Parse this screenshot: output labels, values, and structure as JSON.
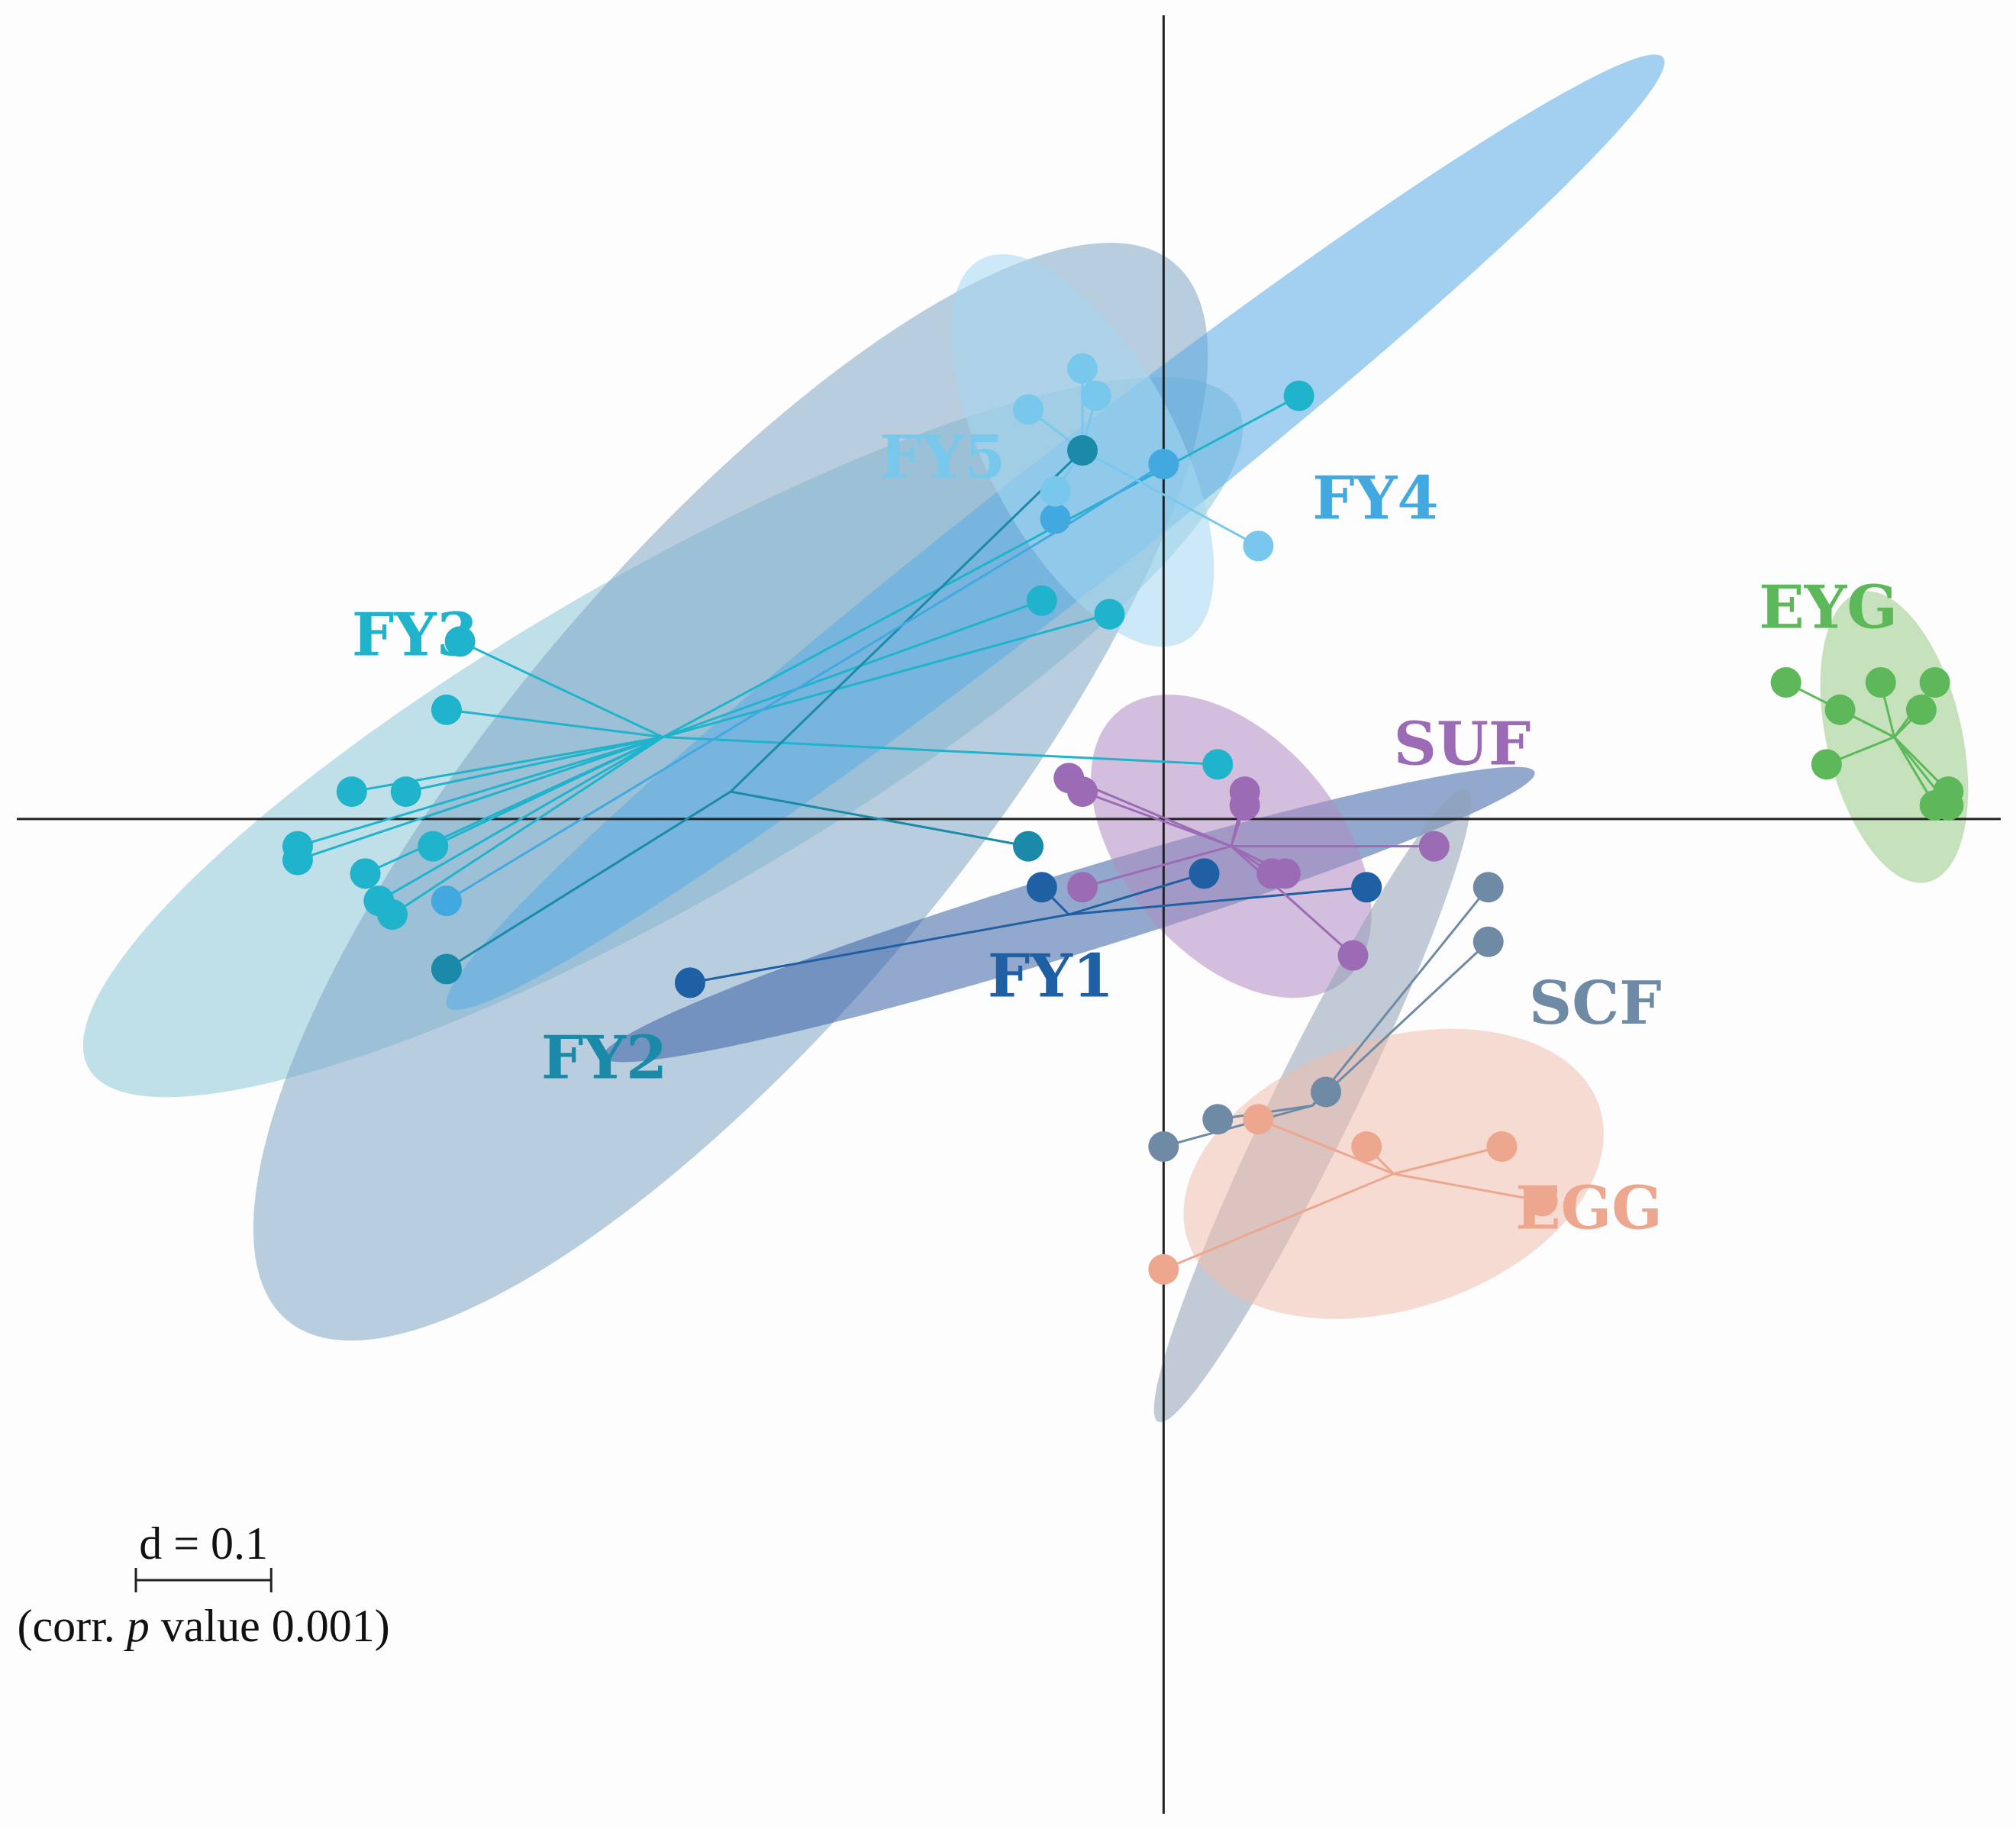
{
  "chart_data": {
    "type": "scatter",
    "subtype": "ordination (s.class) with group centroids and ellipses",
    "xlim": [
      -0.86,
      0.63
    ],
    "ylim": [
      -0.74,
      0.6
    ],
    "axes_cross_at": [
      0,
      0
    ],
    "scale_bar": {
      "distance": 0.1,
      "label": "d = 0.1",
      "caption_parts": [
        "(corr. ",
        "p",
        " value 0.001)"
      ]
    },
    "groups": [
      {
        "name": "FY3",
        "color": "#1fb3cc",
        "ellipse_color": "#8cc9d9",
        "centroid": [
          -0.37,
          0.06
        ],
        "ellipse": {
          "rx": 0.49,
          "ry": 0.12,
          "angle_deg": -30
        },
        "points": [
          [
            -0.53,
            0.08
          ],
          [
            -0.6,
            0.02
          ],
          [
            -0.56,
            0.02
          ],
          [
            -0.64,
            -0.02
          ],
          [
            -0.64,
            -0.03
          ],
          [
            -0.54,
            -0.02
          ],
          [
            -0.58,
            -0.06
          ],
          [
            -0.57,
            -0.07
          ],
          [
            0.04,
            0.04
          ],
          [
            -0.09,
            0.16
          ],
          [
            -0.04,
            0.15
          ],
          [
            -0.52,
            0.13
          ],
          [
            0.1,
            0.31
          ],
          [
            -0.59,
            -0.04
          ]
        ]
      },
      {
        "name": "FY2",
        "color": "#1a8aa8",
        "ellipse_color": "#7fa6c4",
        "centroid": [
          -0.32,
          0.02
        ],
        "ellipse": {
          "rx": 0.51,
          "ry": 0.17,
          "angle_deg": -50
        },
        "points": [
          [
            -0.1,
            -0.02
          ],
          [
            -0.53,
            -0.11
          ],
          [
            -0.06,
            0.27
          ]
        ]
      },
      {
        "name": "FY4",
        "color": "#42a9e0",
        "ellipse_color": "#59ace6",
        "centroid": [
          -0.08,
          0.21
        ],
        "ellipse": {
          "rx": 0.57,
          "ry": 0.05,
          "angle_deg": -38
        },
        "points": [
          [
            0.0,
            0.26
          ],
          [
            -0.08,
            0.22
          ],
          [
            -0.53,
            -0.06
          ]
        ]
      },
      {
        "name": "FY5",
        "color": "#77c8ec",
        "ellipse_color": "#a6d8f2",
        "centroid": [
          -0.06,
          0.27
        ],
        "ellipse": {
          "rx": 0.16,
          "ry": 0.07,
          "angle_deg": 62
        },
        "points": [
          [
            -0.06,
            0.33
          ],
          [
            -0.05,
            0.31
          ],
          [
            -0.1,
            0.3
          ],
          [
            -0.08,
            0.24
          ],
          [
            0.07,
            0.2
          ]
        ]
      },
      {
        "name": "FY1",
        "color": "#1f5fa3",
        "ellipse_color": "#3a63a6",
        "centroid": [
          -0.07,
          -0.07
        ],
        "ellipse": {
          "rx": 0.36,
          "ry": 0.03,
          "angle_deg": -17
        },
        "points": [
          [
            -0.09,
            -0.05
          ],
          [
            0.03,
            -0.04
          ],
          [
            0.15,
            -0.05
          ],
          [
            -0.35,
            -0.12
          ]
        ]
      },
      {
        "name": "SUF",
        "color": "#9b6cb5",
        "ellipse_color": "#b08cc2",
        "centroid": [
          0.05,
          -0.02
        ],
        "ellipse": {
          "rx": 0.13,
          "ry": 0.08,
          "angle_deg": 50
        },
        "points": [
          [
            -0.07,
            0.03
          ],
          [
            -0.06,
            0.02
          ],
          [
            0.06,
            0.02
          ],
          [
            0.06,
            0.01
          ],
          [
            0.2,
            -0.02
          ],
          [
            0.08,
            -0.04
          ],
          [
            0.09,
            -0.04
          ],
          [
            -0.06,
            -0.05
          ],
          [
            0.14,
            -0.1
          ]
        ]
      },
      {
        "name": "SCF",
        "color": "#6e8aa5",
        "ellipse_color": "#8fa0b4",
        "centroid": [
          0.11,
          -0.21
        ],
        "ellipse": {
          "rx": 0.26,
          "ry": 0.03,
          "angle_deg": -64
        },
        "points": [
          [
            0.24,
            -0.05
          ],
          [
            0.24,
            -0.09
          ],
          [
            0.12,
            -0.2
          ],
          [
            0.04,
            -0.22
          ],
          [
            0.0,
            -0.24
          ]
        ]
      },
      {
        "name": "EGG",
        "color": "#eda78f",
        "ellipse_color": "#f0bfae",
        "centroid": [
          0.17,
          -0.26
        ],
        "ellipse": {
          "rx": 0.16,
          "ry": 0.1,
          "angle_deg": -18
        },
        "points": [
          [
            0.07,
            -0.22
          ],
          [
            0.15,
            -0.24
          ],
          [
            0.25,
            -0.24
          ],
          [
            0.25,
            -0.24
          ],
          [
            0.28,
            -0.28
          ],
          [
            0.0,
            -0.33
          ]
        ]
      },
      {
        "name": "EYG",
        "color": "#5cb858",
        "ellipse_color": "#99cc88",
        "centroid": [
          0.54,
          0.06
        ],
        "ellipse": {
          "rx": 0.11,
          "ry": 0.05,
          "angle_deg": 77
        },
        "points": [
          [
            0.46,
            0.1
          ],
          [
            0.5,
            0.08
          ],
          [
            0.53,
            0.1
          ],
          [
            0.57,
            0.1
          ],
          [
            0.56,
            0.08
          ],
          [
            0.49,
            0.04
          ],
          [
            0.58,
            0.02
          ],
          [
            0.58,
            0.01
          ],
          [
            0.57,
            0.01
          ]
        ]
      }
    ],
    "labels": [
      {
        "group": "FY5",
        "text": "FY5",
        "at": [
          -0.21,
          0.25
        ]
      },
      {
        "group": "FY4",
        "text": "FY4",
        "at": [
          0.11,
          0.22
        ]
      },
      {
        "group": "FY3",
        "text": "FY3",
        "at": [
          -0.6,
          0.12
        ]
      },
      {
        "group": "FY2",
        "text": "FY2",
        "at": [
          -0.46,
          -0.19
        ]
      },
      {
        "group": "FY1",
        "text": "FY1",
        "at": [
          -0.13,
          -0.13
        ]
      },
      {
        "group": "SUF",
        "text": "SUF",
        "at": [
          0.17,
          0.04
        ]
      },
      {
        "group": "SCF",
        "text": "SCF",
        "at": [
          0.27,
          -0.15
        ]
      },
      {
        "group": "EGG",
        "text": "EGG",
        "at": [
          0.26,
          -0.3
        ]
      },
      {
        "group": "EYG",
        "text": "EYG",
        "at": [
          0.44,
          0.14
        ]
      }
    ]
  }
}
